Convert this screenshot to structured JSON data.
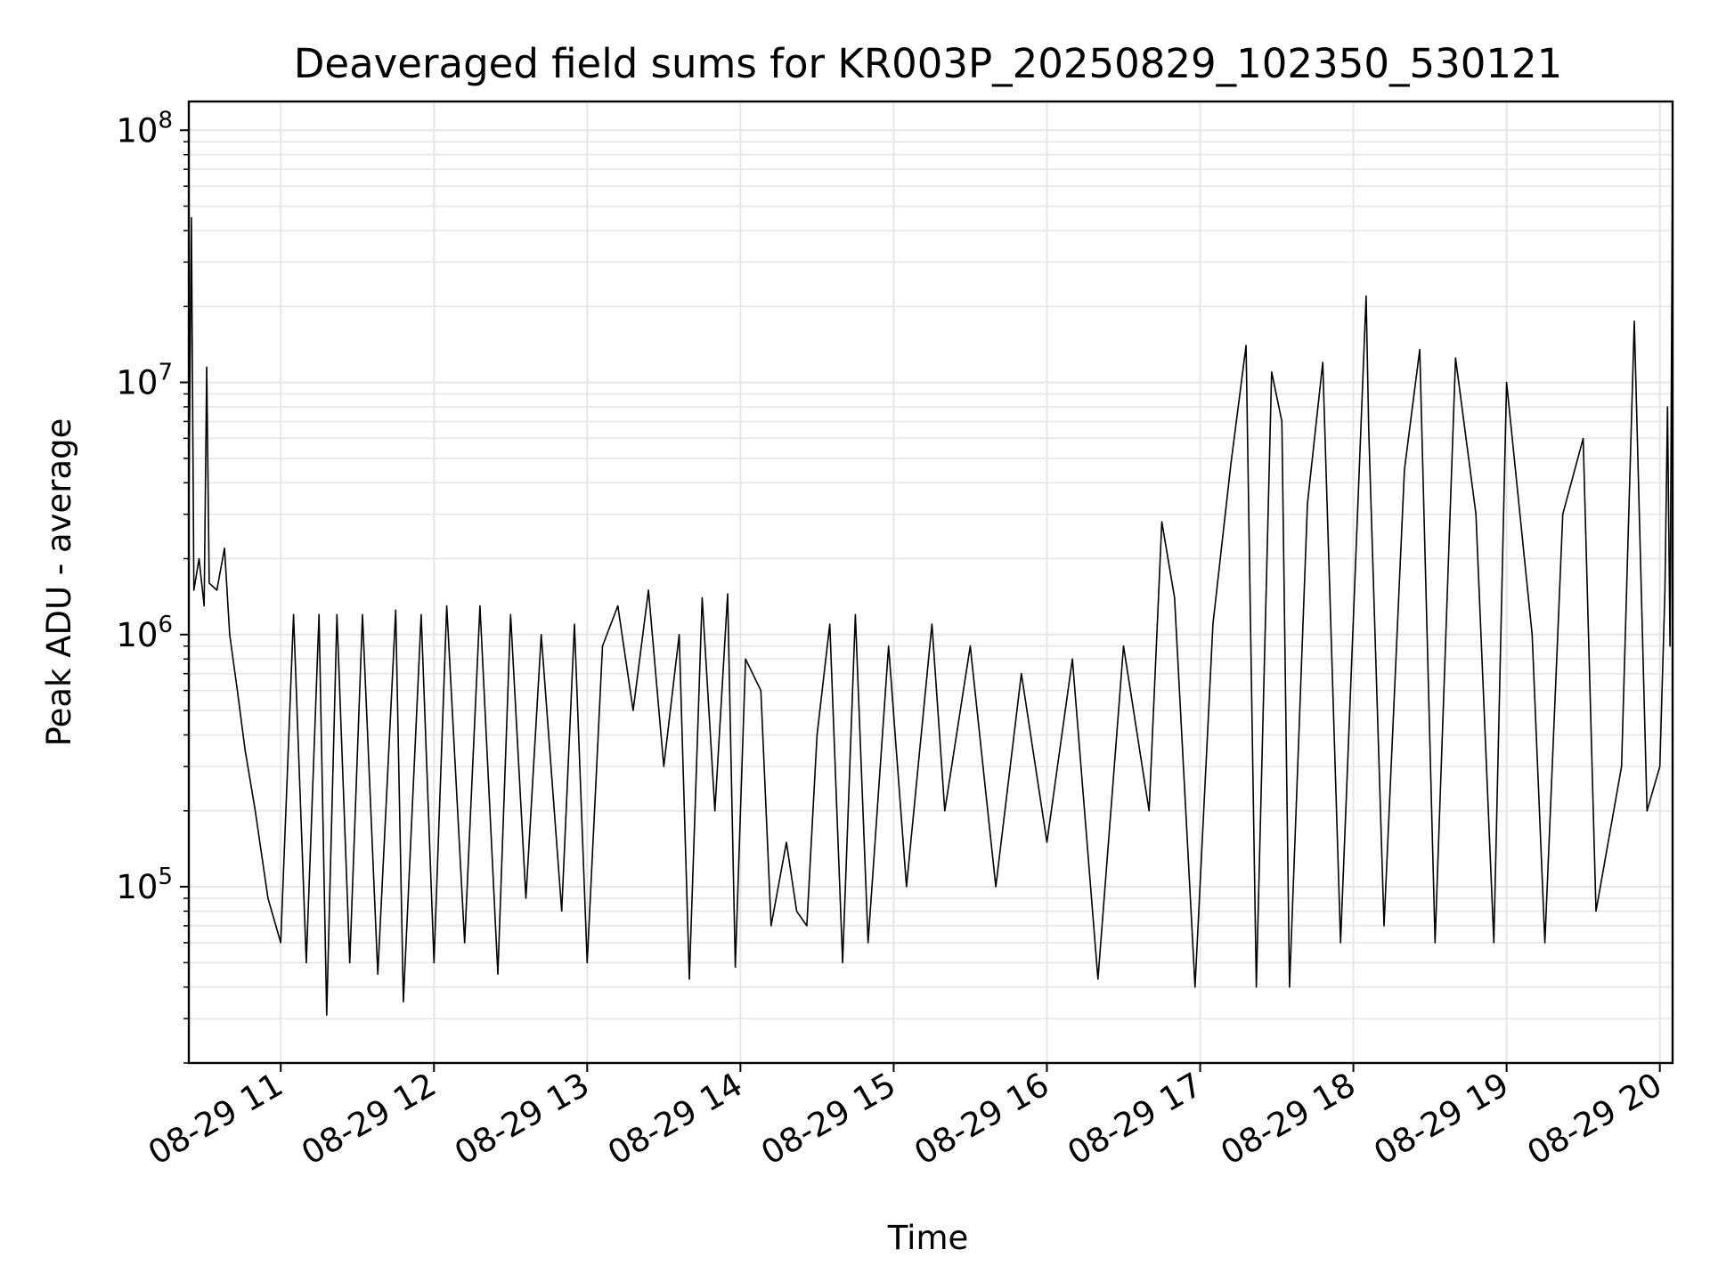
{
  "chart_data": {
    "type": "line",
    "title": "Deaveraged field sums for KR003P_20250829_102350_530121",
    "xlabel": "Time",
    "ylabel": "Peak ADU - average",
    "yscale": "log",
    "ylim": [
      20000,
      130000000
    ],
    "xlim": [
      "2025-08-29 10:24",
      "2025-08-29 20:05"
    ],
    "grid": true,
    "line_color": "#000000",
    "grid_color": "#e6e6e6",
    "x_ticks": [
      {
        "value": "2025-08-29 11:00",
        "label": "08-29 11"
      },
      {
        "value": "2025-08-29 12:00",
        "label": "08-29 12"
      },
      {
        "value": "2025-08-29 13:00",
        "label": "08-29 13"
      },
      {
        "value": "2025-08-29 14:00",
        "label": "08-29 14"
      },
      {
        "value": "2025-08-29 15:00",
        "label": "08-29 15"
      },
      {
        "value": "2025-08-29 16:00",
        "label": "08-29 16"
      },
      {
        "value": "2025-08-29 17:00",
        "label": "08-29 17"
      },
      {
        "value": "2025-08-29 18:00",
        "label": "08-29 18"
      },
      {
        "value": "2025-08-29 19:00",
        "label": "08-29 19"
      },
      {
        "value": "2025-08-29 20:00",
        "label": "08-29 20"
      }
    ],
    "y_ticks": [
      {
        "value": 100000,
        "base": "10",
        "exp": "5"
      },
      {
        "value": 1000000,
        "base": "10",
        "exp": "6"
      },
      {
        "value": 10000000,
        "base": "10",
        "exp": "7"
      },
      {
        "value": 100000000,
        "base": "10",
        "exp": "8"
      }
    ],
    "series": [
      {
        "name": "",
        "points": [
          [
            "2025-08-29 10:24",
            3000000
          ],
          [
            "2025-08-29 10:25",
            45000000
          ],
          [
            "2025-08-29 10:26",
            1500000
          ],
          [
            "2025-08-29 10:28",
            2000000
          ],
          [
            "2025-08-29 10:30",
            1300000
          ],
          [
            "2025-08-29 10:31",
            11500000
          ],
          [
            "2025-08-29 10:32",
            1600000
          ],
          [
            "2025-08-29 10:35",
            1500000
          ],
          [
            "2025-08-29 10:38",
            2200000
          ],
          [
            "2025-08-29 10:40",
            1000000
          ],
          [
            "2025-08-29 10:43",
            600000
          ],
          [
            "2025-08-29 10:46",
            350000
          ],
          [
            "2025-08-29 10:50",
            200000
          ],
          [
            "2025-08-29 10:55",
            90000
          ],
          [
            "2025-08-29 11:00",
            60000
          ],
          [
            "2025-08-29 11:05",
            1200000
          ],
          [
            "2025-08-29 11:10",
            50000
          ],
          [
            "2025-08-29 11:15",
            1200000
          ],
          [
            "2025-08-29 11:18",
            31000
          ],
          [
            "2025-08-29 11:22",
            1200000
          ],
          [
            "2025-08-29 11:27",
            50000
          ],
          [
            "2025-08-29 11:32",
            1200000
          ],
          [
            "2025-08-29 11:38",
            45000
          ],
          [
            "2025-08-29 11:45",
            1250000
          ],
          [
            "2025-08-29 11:48",
            35000
          ],
          [
            "2025-08-29 11:55",
            1200000
          ],
          [
            "2025-08-29 12:00",
            50000
          ],
          [
            "2025-08-29 12:05",
            1300000
          ],
          [
            "2025-08-29 12:12",
            60000
          ],
          [
            "2025-08-29 12:18",
            1300000
          ],
          [
            "2025-08-29 12:25",
            45000
          ],
          [
            "2025-08-29 12:30",
            1200000
          ],
          [
            "2025-08-29 12:36",
            90000
          ],
          [
            "2025-08-29 12:42",
            1000000
          ],
          [
            "2025-08-29 12:50",
            80000
          ],
          [
            "2025-08-29 12:55",
            1100000
          ],
          [
            "2025-08-29 13:00",
            50000
          ],
          [
            "2025-08-29 13:06",
            900000
          ],
          [
            "2025-08-29 13:12",
            1300000
          ],
          [
            "2025-08-29 13:18",
            500000
          ],
          [
            "2025-08-29 13:24",
            1500000
          ],
          [
            "2025-08-29 13:30",
            300000
          ],
          [
            "2025-08-29 13:36",
            1000000
          ],
          [
            "2025-08-29 13:40",
            43000
          ],
          [
            "2025-08-29 13:45",
            1400000
          ],
          [
            "2025-08-29 13:50",
            200000
          ],
          [
            "2025-08-29 13:55",
            1450000
          ],
          [
            "2025-08-29 13:58",
            48000
          ],
          [
            "2025-08-29 14:02",
            800000
          ],
          [
            "2025-08-29 14:08",
            600000
          ],
          [
            "2025-08-29 14:12",
            70000
          ],
          [
            "2025-08-29 14:18",
            150000
          ],
          [
            "2025-08-29 14:22",
            80000
          ],
          [
            "2025-08-29 14:26",
            70000
          ],
          [
            "2025-08-29 14:30",
            400000
          ],
          [
            "2025-08-29 14:35",
            1100000
          ],
          [
            "2025-08-29 14:40",
            50000
          ],
          [
            "2025-08-29 14:45",
            1200000
          ],
          [
            "2025-08-29 14:50",
            60000
          ],
          [
            "2025-08-29 14:58",
            900000
          ],
          [
            "2025-08-29 15:05",
            100000
          ],
          [
            "2025-08-29 15:15",
            1100000
          ],
          [
            "2025-08-29 15:20",
            200000
          ],
          [
            "2025-08-29 15:30",
            900000
          ],
          [
            "2025-08-29 15:40",
            100000
          ],
          [
            "2025-08-29 15:50",
            700000
          ],
          [
            "2025-08-29 16:00",
            150000
          ],
          [
            "2025-08-29 16:10",
            800000
          ],
          [
            "2025-08-29 16:20",
            43000
          ],
          [
            "2025-08-29 16:30",
            900000
          ],
          [
            "2025-08-29 16:40",
            200000
          ],
          [
            "2025-08-29 16:45",
            2800000
          ],
          [
            "2025-08-29 16:50",
            1400000
          ],
          [
            "2025-08-29 16:58",
            40000
          ],
          [
            "2025-08-29 17:05",
            1100000
          ],
          [
            "2025-08-29 17:12",
            4700000
          ],
          [
            "2025-08-29 17:18",
            14000000
          ],
          [
            "2025-08-29 17:22",
            40000
          ],
          [
            "2025-08-29 17:28",
            11000000
          ],
          [
            "2025-08-29 17:32",
            7000000
          ],
          [
            "2025-08-29 17:35",
            40000
          ],
          [
            "2025-08-29 17:42",
            3300000
          ],
          [
            "2025-08-29 17:48",
            12000000
          ],
          [
            "2025-08-29 17:55",
            60000
          ],
          [
            "2025-08-29 18:05",
            22000000
          ],
          [
            "2025-08-29 18:06",
            6500000
          ],
          [
            "2025-08-29 18:12",
            70000
          ],
          [
            "2025-08-29 18:20",
            4500000
          ],
          [
            "2025-08-29 18:26",
            13500000
          ],
          [
            "2025-08-29 18:32",
            60000
          ],
          [
            "2025-08-29 18:40",
            12500000
          ],
          [
            "2025-08-29 18:48",
            3000000
          ],
          [
            "2025-08-29 18:55",
            60000
          ],
          [
            "2025-08-29 19:00",
            10000000
          ],
          [
            "2025-08-29 19:10",
            1000000
          ],
          [
            "2025-08-29 19:15",
            60000
          ],
          [
            "2025-08-29 19:22",
            3000000
          ],
          [
            "2025-08-29 19:30",
            6000000
          ],
          [
            "2025-08-29 19:35",
            80000
          ],
          [
            "2025-08-29 19:45",
            300000
          ],
          [
            "2025-08-29 19:50",
            17500000
          ],
          [
            "2025-08-29 19:55",
            200000
          ],
          [
            "2025-08-29 20:00",
            300000
          ],
          [
            "2025-08-29 20:02",
            1500000
          ],
          [
            "2025-08-29 20:03",
            8000000
          ],
          [
            "2025-08-29 20:04",
            900000
          ],
          [
            "2025-08-29 20:05",
            88000000
          ]
        ]
      }
    ]
  }
}
